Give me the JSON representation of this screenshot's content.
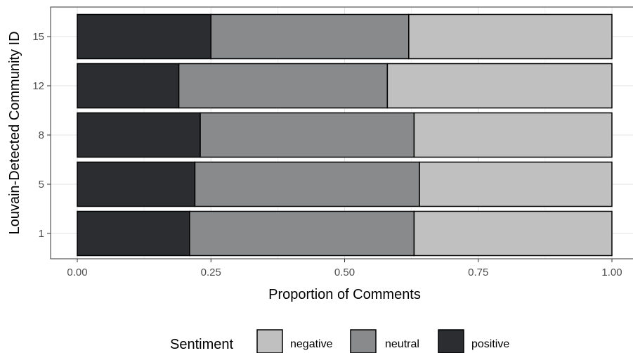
{
  "chart_data": {
    "type": "bar",
    "orientation": "horizontal",
    "stacked": true,
    "title": "",
    "xlabel": "Proportion of Comments",
    "ylabel": "Louvain-Detected Community ID",
    "xlim": [
      0,
      1
    ],
    "x_ticks": [
      "0.00",
      "0.25",
      "0.50",
      "0.75",
      "1.00"
    ],
    "categories": [
      "1",
      "5",
      "8",
      "12",
      "15"
    ],
    "series": [
      {
        "name": "positive",
        "color": "#2b2d30",
        "values": [
          0.21,
          0.22,
          0.23,
          0.19,
          0.25
        ]
      },
      {
        "name": "neutral",
        "color": "#898a8c",
        "values": [
          0.42,
          0.42,
          0.4,
          0.39,
          0.37
        ]
      },
      {
        "name": "negative",
        "color": "#bfc0bf",
        "values": [
          0.37,
          0.36,
          0.37,
          0.42,
          0.38
        ]
      }
    ],
    "grid": true,
    "legend": {
      "title": "Sentiment",
      "position": "bottom",
      "order": [
        "negative",
        "neutral",
        "positive"
      ]
    }
  }
}
